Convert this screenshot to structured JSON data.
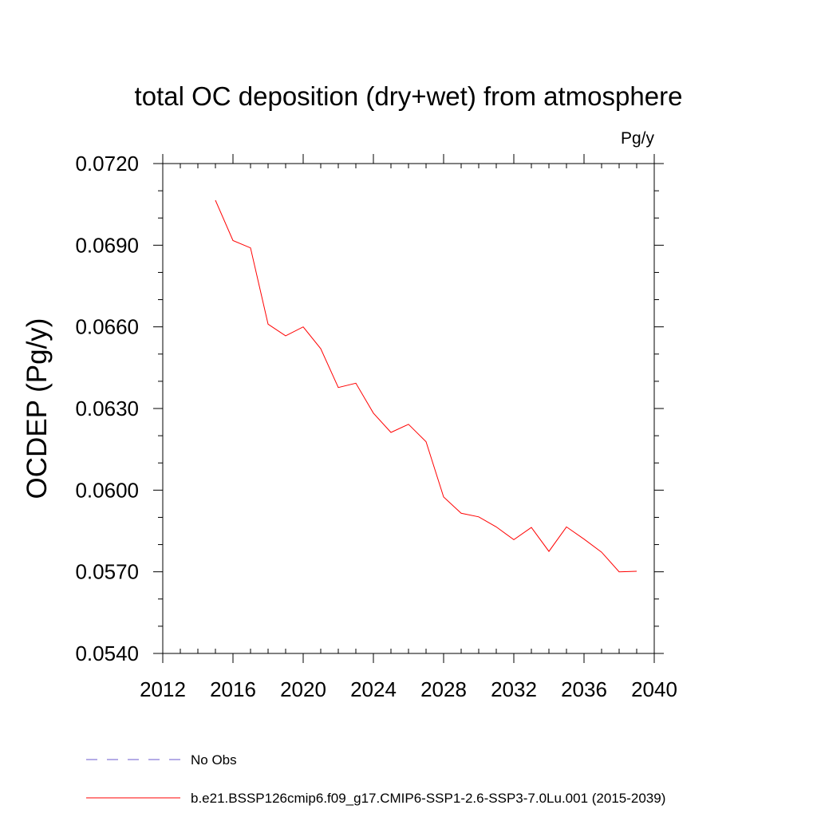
{
  "chart_data": {
    "type": "line",
    "title": "total OC deposition (dry+wet) from atmosphere",
    "units": "Pg/y",
    "xlabel": "",
    "ylabel": "OCDEP  (Pg/y)",
    "xlim": [
      2012,
      2040
    ],
    "ylim": [
      0.054,
      0.072
    ],
    "x_ticks": [
      2012,
      2016,
      2020,
      2024,
      2028,
      2032,
      2036,
      2040
    ],
    "x_tick_labels": [
      "2012",
      "2016",
      "2020",
      "2024",
      "2028",
      "2032",
      "2036",
      "2040"
    ],
    "y_ticks": [
      0.054,
      0.057,
      0.06,
      0.063,
      0.066,
      0.069,
      0.072
    ],
    "y_tick_labels": [
      "0.0540",
      "0.0570",
      "0.0600",
      "0.0630",
      "0.0660",
      "0.0690",
      "0.0720"
    ],
    "grid": false,
    "legend_position": "bottom",
    "series": [
      {
        "name": "b.e21.BSSP126cmip6.f09_g17.CMIP6-SSP1-2.6-SSP3-7.0Lu.001 (2015-2039)",
        "color": "#ff0000",
        "style": "solid",
        "x": [
          2015,
          2016,
          2017,
          2018,
          2019,
          2020,
          2021,
          2022,
          2023,
          2024,
          2025,
          2026,
          2027,
          2028,
          2029,
          2030,
          2031,
          2032,
          2033,
          2034,
          2035,
          2036,
          2037,
          2038,
          2039
        ],
        "values": [
          0.07065,
          0.06917,
          0.0689,
          0.0661,
          0.06567,
          0.066,
          0.0652,
          0.06377,
          0.06393,
          0.06283,
          0.06212,
          0.06242,
          0.06178,
          0.05975,
          0.05915,
          0.05902,
          0.05865,
          0.05818,
          0.05863,
          0.05775,
          0.05865,
          0.0582,
          0.05772,
          0.057,
          0.05702
        ]
      }
    ],
    "legend_entries": [
      {
        "label": "No Obs",
        "color": "#6a5acd",
        "style": "dashed"
      },
      {
        "label": "b.e21.BSSP126cmip6.f09_g17.CMIP6-SSP1-2.6-SSP3-7.0Lu.001 (2015-2039)",
        "color": "#ff0000",
        "style": "solid"
      }
    ]
  }
}
